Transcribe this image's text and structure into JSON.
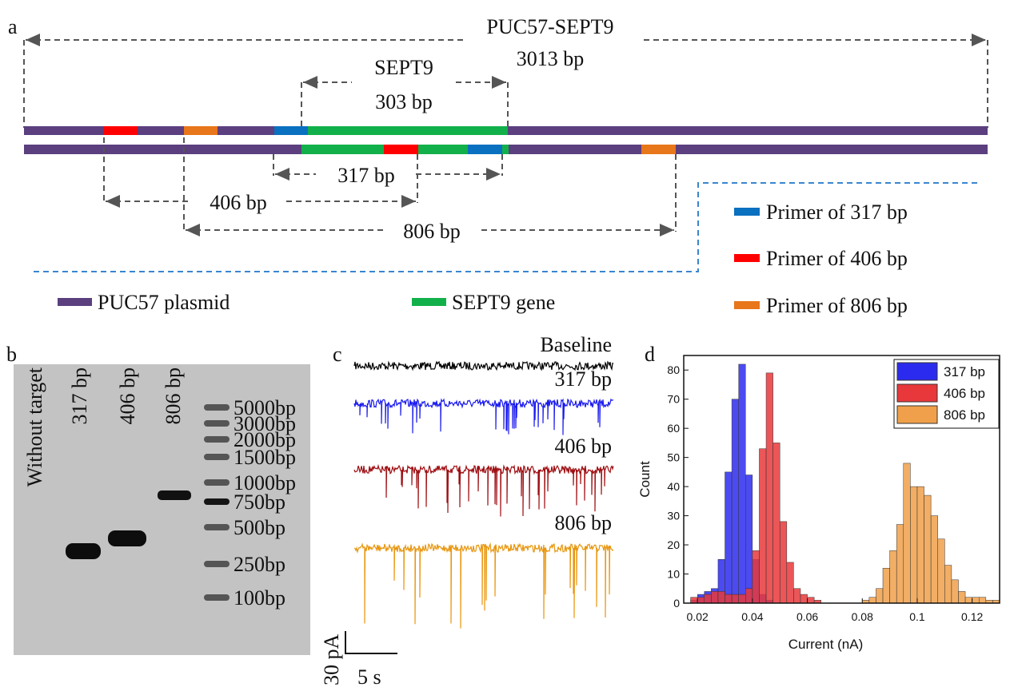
{
  "panel_a": {
    "label": "a",
    "plasmid_title": "PUC57-SEPT9",
    "plasmid_length": "3013 bp",
    "gene_title": "SEPT9",
    "gene_length": "303 bp",
    "products": [
      "317 bp",
      "406 bp",
      "806 bp"
    ],
    "legend": [
      "PUC57 plasmid",
      "SEPT9 gene",
      "Primer of 317 bp",
      "Primer of 406 bp",
      "Primer of 806 bp"
    ]
  },
  "panel_b": {
    "label": "b",
    "lanes": [
      "Without target",
      "317 bp",
      "406 bp",
      "806 bp"
    ],
    "ladder": [
      "5000bp",
      "3000bp",
      "2000bp",
      "1500bp",
      "1000bp",
      "750bp",
      "500bp",
      "250bp",
      "100bp"
    ]
  },
  "panel_c": {
    "label": "c",
    "traces": [
      "Baseline",
      "317 bp",
      "406 bp",
      "806 bp"
    ],
    "scale_current": "30 pA",
    "scale_time": "5 s"
  },
  "chart_data": {
    "type": "histogram",
    "label": "d",
    "x_label": "Current (nA)",
    "y_label": "Count",
    "xlim": [
      0.015,
      0.13
    ],
    "xticks": [
      0.02,
      0.04,
      0.06,
      0.08,
      0.1,
      0.12
    ],
    "ylim": [
      0,
      85
    ],
    "yticks": [
      0,
      10,
      20,
      30,
      40,
      50,
      60,
      70,
      80
    ],
    "series": [
      {
        "name": "317 bp",
        "color": "#2b2bef",
        "bins": [
          0.0175,
          0.02,
          0.0225,
          0.025,
          0.0275,
          0.03,
          0.0325,
          0.035,
          0.0375,
          0.04,
          0.0425,
          0.045,
          0.0475
        ],
        "values": [
          1,
          3,
          4,
          5,
          15,
          45,
          70,
          82,
          44,
          15,
          3,
          1
        ]
      },
      {
        "name": "406 bp",
        "color": "#e8383b",
        "bins": [
          0.0175,
          0.02,
          0.0225,
          0.025,
          0.0275,
          0.03,
          0.0325,
          0.035,
          0.0375,
          0.04,
          0.0425,
          0.045,
          0.0475,
          0.05,
          0.0525,
          0.055,
          0.0575,
          0.06,
          0.0625,
          0.065
        ],
        "values": [
          2,
          2,
          3,
          4,
          4,
          3,
          3,
          3,
          5,
          18,
          53,
          79,
          55,
          28,
          14,
          5,
          3,
          2,
          1
        ]
      },
      {
        "name": "806 bp",
        "color": "#f0a04a",
        "bins": [
          0.08,
          0.0825,
          0.085,
          0.0875,
          0.09,
          0.0925,
          0.095,
          0.0975,
          0.1,
          0.1025,
          0.105,
          0.1075,
          0.11,
          0.1125,
          0.115,
          0.1175,
          0.12,
          0.1225,
          0.125,
          0.1275,
          0.13
        ],
        "values": [
          1,
          2,
          5,
          12,
          18,
          27,
          48,
          40,
          40,
          37,
          30,
          22,
          13,
          8,
          4,
          2,
          2,
          2,
          1,
          1
        ]
      }
    ]
  }
}
